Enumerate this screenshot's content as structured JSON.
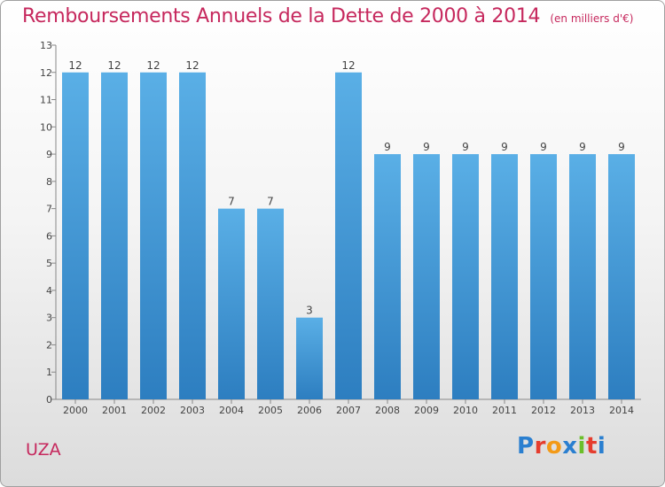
{
  "title": "Remboursements Annuels de la Dette de 2000 à 2014",
  "unit": "(en milliers d'€)",
  "commune": "UZA",
  "logo": "Proxiti",
  "colors": {
    "title": "#c6285d",
    "bar_top": "#5aafe6",
    "bar_bottom": "#2d7ec0",
    "logo": [
      "#2a7fd0",
      "#e53d2e",
      "#f39a17",
      "#2a7fd0",
      "#6bbf2a",
      "#e53d2e",
      "#2a7fd0"
    ]
  },
  "chart_data": {
    "type": "bar",
    "categories": [
      "2000",
      "2001",
      "2002",
      "2003",
      "2004",
      "2005",
      "2006",
      "2007",
      "2008",
      "2009",
      "2010",
      "2011",
      "2012",
      "2013",
      "2014"
    ],
    "values": [
      12,
      12,
      12,
      12,
      7,
      7,
      3,
      12,
      9,
      9,
      9,
      9,
      9,
      9,
      9
    ],
    "ylim": [
      0,
      13
    ],
    "yticks": [
      0,
      1,
      2,
      3,
      4,
      5,
      6,
      7,
      8,
      9,
      10,
      11,
      12,
      13
    ],
    "grid": false
  }
}
